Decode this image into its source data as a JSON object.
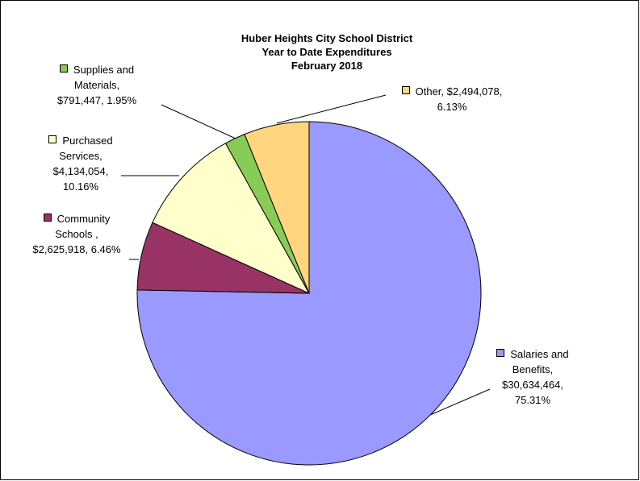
{
  "chart_data": {
    "type": "pie",
    "title": "Huber Heights City School District",
    "subtitle": "Year to Date Expenditures",
    "period": "February 2018",
    "categories": [
      "Salaries and Benefits",
      "Community Schools ",
      "Purchased Services",
      "Supplies and Materials",
      "Other"
    ],
    "values": [
      30634464,
      2625918,
      4134054,
      791447,
      2494078
    ],
    "value_labels": [
      "$30,634,464",
      "$2,625,918",
      "$4,134,054",
      "$791,447",
      "$2,494,078"
    ],
    "percentages": [
      75.31,
      6.46,
      10.16,
      1.95,
      6.13
    ],
    "percentage_labels": [
      "75.31%",
      "6.46%",
      "10.16%",
      "1.95%",
      "6.13%"
    ],
    "separator": ",",
    "colors": [
      "#9999ff",
      "#993366",
      "#ffffcc",
      "#88cc55",
      "#ffd580"
    ]
  }
}
